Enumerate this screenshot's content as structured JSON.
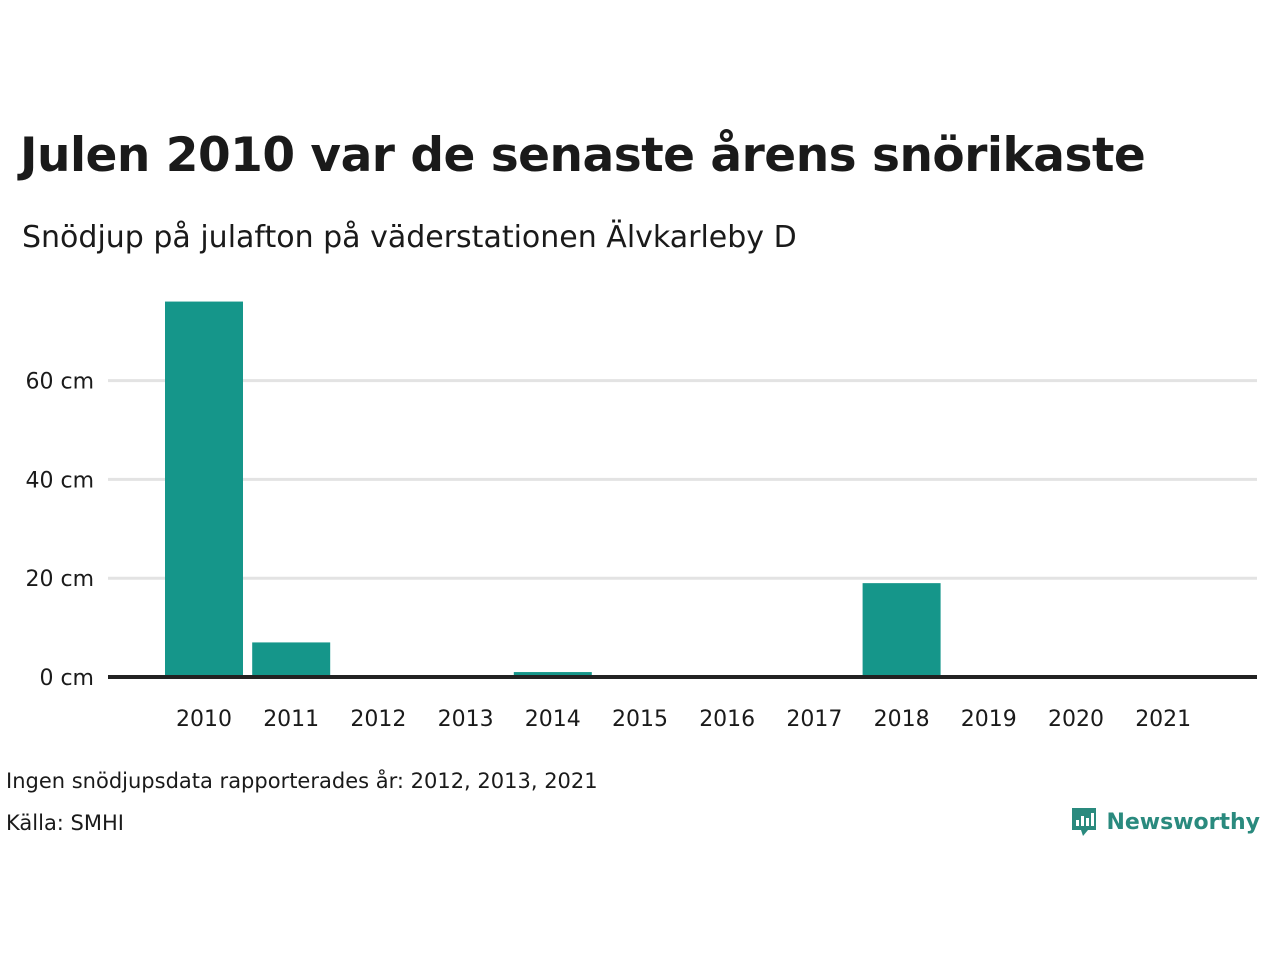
{
  "title": "Julen 2010 var de senaste årens snörikaste",
  "subtitle": "Snödjup på julafton på väderstationen Älvkarleby D",
  "footnote_missing": "Ingen snödjupsdata rapporterades år: 2012, 2013, 2021",
  "source": "Källa: SMHI",
  "logo_text": "Newsworthy",
  "colors": {
    "bar": "#15968a",
    "grid": "#e3e3e3",
    "baseline": "#222222",
    "logo": "#2a8a7e"
  },
  "chart_data": {
    "type": "bar",
    "categories": [
      "2010",
      "2011",
      "2012",
      "2013",
      "2014",
      "2015",
      "2016",
      "2017",
      "2018",
      "2019",
      "2020",
      "2021"
    ],
    "values": [
      76,
      7,
      null,
      null,
      1,
      0,
      0,
      0,
      19,
      0,
      0,
      null
    ],
    "ylim": [
      0,
      80
    ],
    "yticks": [
      0,
      20,
      40,
      60
    ],
    "ytick_labels": [
      "0 cm",
      "20 cm",
      "40 cm",
      "60 cm"
    ],
    "grid": true,
    "legend": "none"
  }
}
